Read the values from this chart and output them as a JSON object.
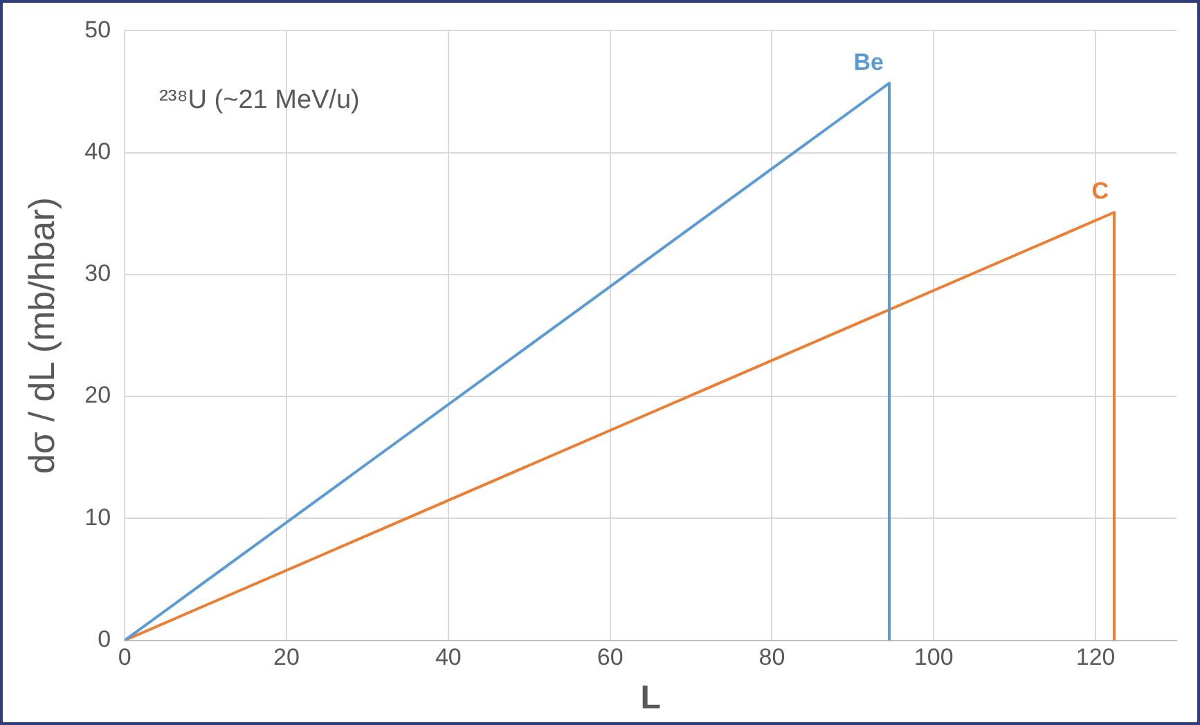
{
  "chart_data": {
    "type": "line",
    "xlabel": "L",
    "ylabel": "dσ / dL (mb/hbar)",
    "annotations": [
      "²³⁸U (~21 MeV/u)"
    ],
    "series": [
      {
        "name": "Be",
        "color": "#5b9bd5",
        "x": [
          0,
          94.5,
          94.5
        ],
        "values": [
          0,
          45.7,
          0
        ]
      },
      {
        "name": "C",
        "color": "#ed7d31",
        "x": [
          0,
          122.3,
          122.3
        ],
        "values": [
          0,
          35.1,
          0
        ]
      }
    ],
    "xlim": [
      0,
      130
    ],
    "xticks": [
      0,
      20,
      40,
      60,
      80,
      100,
      120
    ],
    "ylim": [
      0,
      50
    ],
    "yticks": [
      0,
      10,
      20,
      30,
      40,
      50
    ],
    "grid": true,
    "legend": false,
    "marker": "none",
    "line_style": "solid"
  }
}
